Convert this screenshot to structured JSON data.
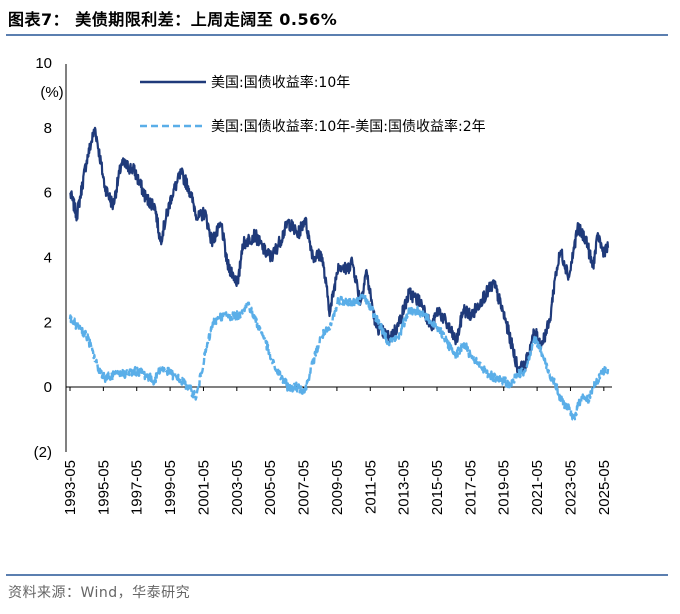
{
  "header": {
    "title": "图表7： 美债期限利差：上周走阔至 0.56%"
  },
  "footer": {
    "source": "资料来源：Wind，华泰研究"
  },
  "colors": {
    "series_10y": "#1f3a7a",
    "series_spread": "#5aaee8",
    "rule": "#5b7fb0"
  },
  "chart_data": {
    "type": "line",
    "ylabel": "(%)",
    "ylim": [
      -2,
      10
    ],
    "yticks": [
      10,
      8,
      6,
      4,
      2,
      0,
      -2
    ],
    "ytick_labels": [
      "10",
      "8",
      "6",
      "4",
      "2",
      "0",
      "(2)"
    ],
    "xlim": [
      "1993-05",
      "2025-08"
    ],
    "xtick_labels": [
      "1993-05",
      "1995-05",
      "1997-05",
      "1999-05",
      "2001-05",
      "2003-05",
      "2005-05",
      "2007-05",
      "2009-05",
      "2011-05",
      "2013-05",
      "2015-05",
      "2017-05",
      "2019-05",
      "2021-05",
      "2023-05",
      "2025-05"
    ],
    "legend_position": "top-center",
    "series": [
      {
        "name": "美国:国债收益率:10年",
        "style": "solid",
        "x": [
          "1993-05",
          "1993-10",
          "1994-05",
          "1994-11",
          "1995-06",
          "1995-12",
          "1996-06",
          "1997-03",
          "1997-12",
          "1998-06",
          "1998-10",
          "1999-06",
          "2000-01",
          "2000-06",
          "2001-01",
          "2001-06",
          "2001-11",
          "2002-06",
          "2002-10",
          "2003-06",
          "2003-09",
          "2004-06",
          "2005-01",
          "2005-06",
          "2005-12",
          "2006-06",
          "2007-01",
          "2007-06",
          "2007-12",
          "2008-06",
          "2008-12",
          "2009-06",
          "2009-12",
          "2010-04",
          "2010-10",
          "2011-02",
          "2011-09",
          "2012-07",
          "2013-01",
          "2013-09",
          "2014-06",
          "2015-01",
          "2015-06",
          "2016-07",
          "2016-12",
          "2017-06",
          "2018-01",
          "2018-10",
          "2019-06",
          "2019-09",
          "2020-03",
          "2020-08",
          "2021-03",
          "2021-08",
          "2022-02",
          "2022-06",
          "2022-10",
          "2023-04",
          "2023-10",
          "2024-04",
          "2024-09",
          "2025-01",
          "2025-04",
          "2025-08"
        ],
        "values": [
          6.0,
          5.3,
          7.0,
          8.0,
          6.2,
          5.6,
          6.9,
          6.7,
          5.8,
          5.6,
          4.5,
          5.9,
          6.6,
          6.2,
          5.2,
          5.4,
          4.5,
          5.0,
          3.8,
          3.2,
          4.4,
          4.7,
          4.2,
          4.0,
          4.5,
          5.1,
          4.7,
          5.2,
          4.0,
          4.1,
          2.3,
          3.8,
          3.6,
          3.9,
          2.6,
          3.6,
          1.9,
          1.5,
          1.9,
          2.9,
          2.6,
          1.8,
          2.4,
          1.4,
          2.4,
          2.2,
          2.7,
          3.2,
          2.1,
          1.6,
          0.6,
          0.6,
          1.7,
          1.3,
          2.0,
          3.4,
          4.2,
          3.4,
          4.9,
          4.6,
          3.7,
          4.7,
          4.2,
          4.3
        ]
      },
      {
        "name": "美国:国债收益率:10年-美国:国债收益率:2年",
        "style": "dashed",
        "x": [
          "1993-05",
          "1994-01",
          "1994-06",
          "1995-01",
          "1995-06",
          "1996-06",
          "1997-06",
          "1998-06",
          "1998-10",
          "1999-06",
          "2000-01",
          "2000-06",
          "2000-12",
          "2001-06",
          "2001-12",
          "2002-06",
          "2003-06",
          "2004-01",
          "2004-06",
          "2005-01",
          "2005-06",
          "2006-01",
          "2006-06",
          "2007-01",
          "2007-06",
          "2007-12",
          "2008-06",
          "2008-12",
          "2009-06",
          "2010-06",
          "2011-01",
          "2011-06",
          "2012-06",
          "2013-01",
          "2013-09",
          "2014-06",
          "2015-06",
          "2016-06",
          "2017-01",
          "2017-06",
          "2018-06",
          "2019-01",
          "2019-06",
          "2019-09",
          "2020-03",
          "2020-08",
          "2021-03",
          "2021-08",
          "2022-02",
          "2022-06",
          "2022-10",
          "2023-03",
          "2023-07",
          "2024-01",
          "2024-06",
          "2024-09",
          "2025-01",
          "2025-04",
          "2025-08"
        ],
        "values": [
          2.1,
          1.8,
          1.5,
          0.6,
          0.3,
          0.4,
          0.5,
          0.2,
          0.6,
          0.4,
          0.2,
          0.0,
          -0.3,
          1.0,
          2.0,
          2.2,
          2.2,
          2.6,
          2.1,
          1.5,
          0.8,
          0.3,
          0.0,
          0.0,
          -0.1,
          0.8,
          1.6,
          1.8,
          2.7,
          2.6,
          2.8,
          2.4,
          1.4,
          1.5,
          2.4,
          2.3,
          1.8,
          1.0,
          1.3,
          0.9,
          0.4,
          0.2,
          0.2,
          0.0,
          0.4,
          0.5,
          1.5,
          1.1,
          0.4,
          0.1,
          -0.4,
          -0.6,
          -1.0,
          -0.3,
          -0.4,
          0.0,
          0.2,
          0.5,
          0.56
        ]
      }
    ]
  }
}
